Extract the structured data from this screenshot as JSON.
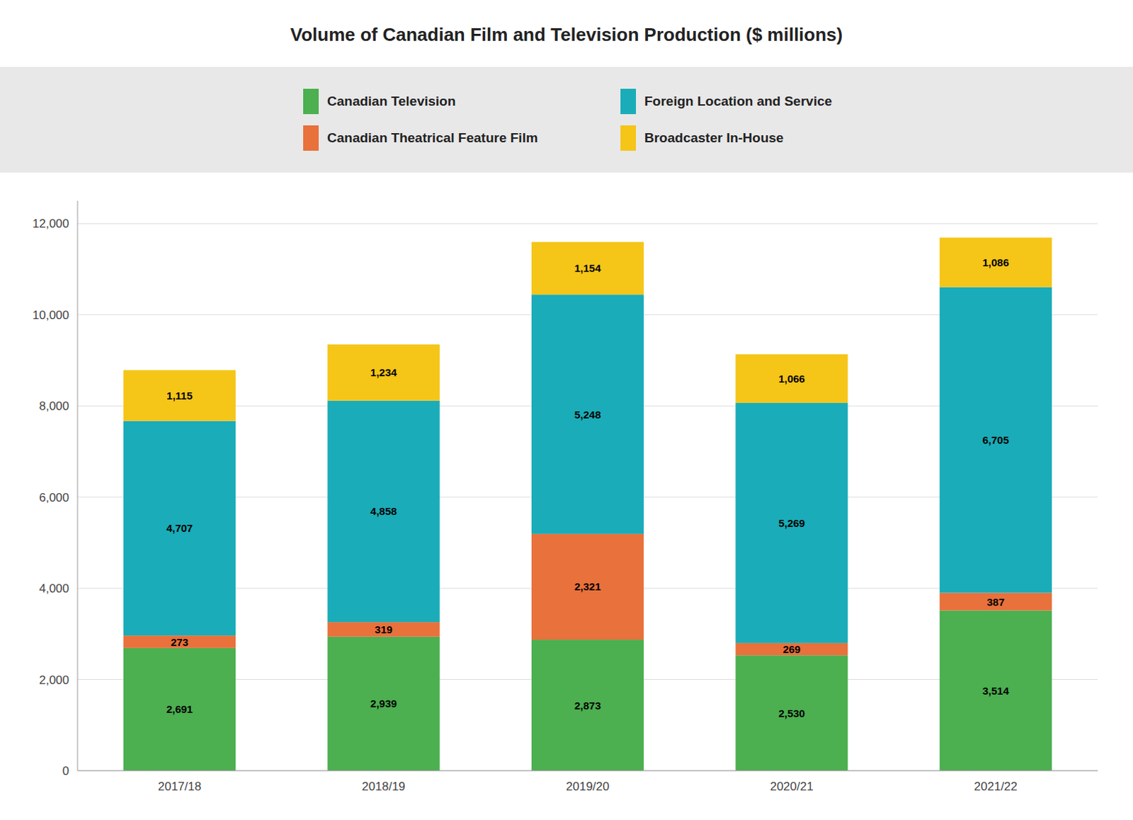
{
  "chart_data": {
    "type": "bar",
    "stacked": true,
    "data_labels": true,
    "grid": true,
    "legend": "top",
    "title": "Volume of Canadian Film and Television Production ($ millions)",
    "categories": [
      "2017/18",
      "2018/19",
      "2019/20",
      "2020/21",
      "2021/22"
    ],
    "series": [
      {
        "name": "Canadian Television",
        "color": "#4CAF50",
        "values": [
          2691,
          2939,
          2873,
          2530,
          3514
        ],
        "value_labels": [
          "2,691",
          "2,939",
          "2,873",
          "2,530",
          "3,514"
        ]
      },
      {
        "name": "Canadian Theatrical Feature Film",
        "color": "#E8713C",
        "values": [
          273,
          319,
          2321,
          269,
          387
        ],
        "value_labels": [
          "273",
          "319",
          "2,321",
          "269",
          "387"
        ]
      },
      {
        "name": "Foreign Location and Service",
        "color": "#1AACB8",
        "values": [
          4707,
          4858,
          5248,
          5269,
          6705
        ],
        "value_labels": [
          "4,707",
          "4,858",
          "5,248",
          "5,269",
          "6,705"
        ]
      },
      {
        "name": "Broadcaster In-House",
        "color": "#F5C518",
        "values": [
          1115,
          1234,
          1154,
          1066,
          1086
        ],
        "value_labels": [
          "1,115",
          "1,234",
          "1,154",
          "1,066",
          "1,086"
        ]
      }
    ],
    "ylim": [
      0,
      12500
    ],
    "yticks": [
      0,
      {
        "value": 2000,
        "label": "2,000"
      },
      {
        "value": 4000,
        "label": "4,000"
      },
      {
        "value": 6000,
        "label": "6,000"
      },
      {
        "value": 8000,
        "label": "8,000"
      },
      {
        "value": 10000,
        "label": "10,000"
      },
      {
        "value": 12000,
        "label": "12,000"
      }
    ]
  }
}
